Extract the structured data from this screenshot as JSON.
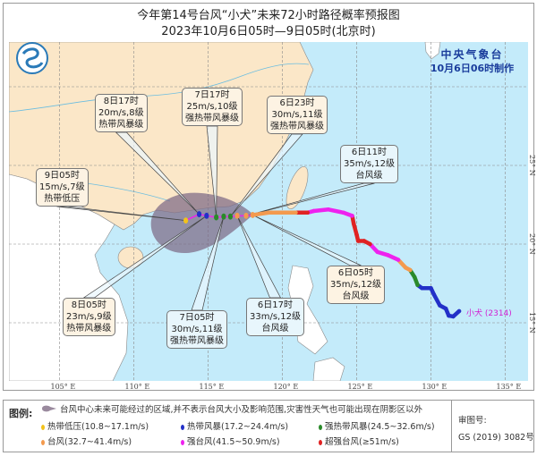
{
  "title": "今年第14号台风“小犬”未来72小时路径概率预报图",
  "subtitle": "2023年10月6日05时—9日05时(北京时)",
  "agency": "中央气象台",
  "issued": "10月6日06时制作",
  "storm_label": "小犬 (2314)",
  "colors": {
    "land_china": "#fbe7c8",
    "land_other": "#ffffff",
    "sea": "#c4ebfa",
    "cone": "#8a7a92",
    "td": "#f2c21b",
    "ts": "#2330c8",
    "sts": "#2a8a2a",
    "ty": "#f39a4e",
    "sty": "#ee22ee",
    "superty": "#e02222"
  },
  "axes": {
    "lon_ticks": [
      "105° E",
      "110° E",
      "115° E",
      "120° E",
      "125° E",
      "130° E",
      "135° E"
    ],
    "lat_ticks": [
      "25° N",
      "20° N",
      "15° N"
    ]
  },
  "observed_track": [
    {
      "lon": 131.9,
      "lat": 15.74,
      "cat": "ts"
    },
    {
      "lon": 131.5,
      "lat": 15.4,
      "cat": "ts"
    },
    {
      "lon": 131.2,
      "lat": 15.45,
      "cat": "ts"
    },
    {
      "lon": 131.0,
      "lat": 15.9,
      "cat": "ts"
    },
    {
      "lon": 130.6,
      "lat": 16.1,
      "cat": "ts"
    },
    {
      "lon": 130.2,
      "lat": 16.8,
      "cat": "ts"
    },
    {
      "lon": 130.0,
      "lat": 17.2,
      "cat": "ts"
    },
    {
      "lon": 129.4,
      "lat": 17.2,
      "cat": "ts"
    },
    {
      "lon": 129.1,
      "lat": 17.4,
      "cat": "sts"
    },
    {
      "lon": 128.9,
      "lat": 17.9,
      "cat": "sts"
    },
    {
      "lon": 128.6,
      "lat": 18.35,
      "cat": "ty"
    },
    {
      "lon": 128.3,
      "lat": 18.5,
      "cat": "ty"
    },
    {
      "lon": 127.8,
      "lat": 19.0,
      "cat": "sty"
    },
    {
      "lon": 127.1,
      "lat": 19.3,
      "cat": "sty"
    },
    {
      "lon": 126.4,
      "lat": 19.5,
      "cat": "sty"
    },
    {
      "lon": 125.9,
      "lat": 20.0,
      "cat": "superty"
    },
    {
      "lon": 125.5,
      "lat": 20.2,
      "cat": "superty"
    },
    {
      "lon": 125.1,
      "lat": 20.2,
      "cat": "superty"
    },
    {
      "lon": 125.0,
      "lat": 20.6,
      "cat": "superty"
    },
    {
      "lon": 124.8,
      "lat": 21.3,
      "cat": "superty"
    },
    {
      "lon": 124.7,
      "lat": 21.8,
      "cat": "sty"
    },
    {
      "lon": 124.1,
      "lat": 22.0,
      "cat": "sty"
    },
    {
      "lon": 123.1,
      "lat": 22.2,
      "cat": "sty"
    },
    {
      "lon": 122.1,
      "lat": 22.1,
      "cat": "sty"
    },
    {
      "lon": 121.7,
      "lat": 22.0,
      "cat": "superty"
    },
    {
      "lon": 120.9,
      "lat": 22.0,
      "cat": "ty"
    },
    {
      "lon": 119.1,
      "lat": 22.0,
      "cat": "ty"
    },
    {
      "lon": 118.0,
      "lat": 21.85,
      "cat": "ty"
    }
  ],
  "forecast": [
    {
      "time": "6日05时",
      "wind": "35m/s,12级",
      "level": "台风级",
      "lon": 118.0,
      "lat": 21.85,
      "cat": "ty"
    },
    {
      "time": "6日11时",
      "wind": "35m/s,12级",
      "level": "台风级",
      "lon": 117.56,
      "lat": 21.8,
      "cat": "ty"
    },
    {
      "time": "6日17时",
      "wind": "33m/s,12级",
      "level": "台风级",
      "lon": 116.96,
      "lat": 21.8,
      "cat": "ty"
    },
    {
      "time": "6日23时",
      "wind": "30m/s,11级",
      "level": "强热带风暴级",
      "lon": 116.5,
      "lat": 21.75,
      "cat": "sts"
    },
    {
      "time": "7日05时",
      "wind": "30m/s,11级",
      "level": "强热带风暴级",
      "lon": 116.05,
      "lat": 21.75,
      "cat": "sts"
    },
    {
      "time": "7日17时",
      "wind": "25m/s,10级",
      "level": "强热带风暴级",
      "lon": 115.55,
      "lat": 21.7,
      "cat": "sts"
    },
    {
      "time": "8日05时",
      "wind": "23m/s,9级",
      "level": "热带风暴级",
      "lon": 114.9,
      "lat": 21.8,
      "cat": "ts"
    },
    {
      "time": "8日17时",
      "wind": "20m/s,8级",
      "level": "热带风暴级",
      "lon": 114.4,
      "lat": 21.9,
      "cat": "ts"
    },
    {
      "time": "9日05时",
      "wind": "15m/s,7级",
      "level": "热带低压",
      "lon": 113.5,
      "lat": 21.5,
      "cat": "td"
    }
  ],
  "legend": {
    "label": "图例:",
    "cone_text": "台风中心未来可能经过的区域,并不表示台风大小及影响范围,灾害性天气也可能出现在阴影区以外",
    "items": [
      {
        "cat": "td",
        "text": "热带低压(10.8~17.1m/s)"
      },
      {
        "cat": "ts",
        "text": "热带风暴(17.2~24.4m/s)"
      },
      {
        "cat": "sts",
        "text": "强热带风暴(24.5~32.6m/s)"
      },
      {
        "cat": "ty",
        "text": "台风(32.7~41.4m/s)"
      },
      {
        "cat": "sty",
        "text": "强台风(41.5~50.9m/s)"
      },
      {
        "cat": "superty",
        "text": "超强台风(≥51m/s)"
      }
    ],
    "review_label": "审图号:",
    "review_number": "GS (2019) 3082号"
  }
}
